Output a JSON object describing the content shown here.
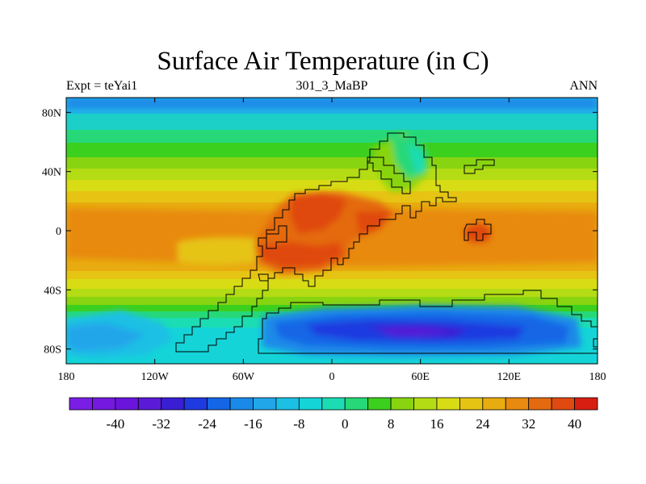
{
  "title": "Surface Air Temperature (in C)",
  "subtitle_left": "Expt = teYai1",
  "subtitle_center": "301_3_MaBP",
  "subtitle_right": "ANN",
  "map": {
    "type": "contour-map",
    "lon_range": [
      -180,
      180
    ],
    "lat_range": [
      -90,
      90
    ],
    "x_ticks": [
      {
        "value": -180,
        "label": "180"
      },
      {
        "value": -120,
        "label": "120W"
      },
      {
        "value": -60,
        "label": "60W"
      },
      {
        "value": 0,
        "label": "0"
      },
      {
        "value": 60,
        "label": "60E"
      },
      {
        "value": 120,
        "label": "120E"
      },
      {
        "value": 180,
        "label": "180"
      }
    ],
    "y_ticks": [
      {
        "value": 80,
        "label": "80N"
      },
      {
        "value": 40,
        "label": "40N"
      },
      {
        "value": 0,
        "label": "0"
      },
      {
        "value": -40,
        "label": "40S"
      },
      {
        "value": -80,
        "label": "80S"
      }
    ]
  },
  "colorbar": {
    "colors": [
      "#7a1ee6",
      "#7518e0",
      "#6a14dc",
      "#5a1ad8",
      "#3a1ed4",
      "#1e3ae0",
      "#1466e6",
      "#1a8ae8",
      "#22a6ea",
      "#1cc0e4",
      "#14d4d8",
      "#1cdcb4",
      "#26d878",
      "#3cd01e",
      "#88d410",
      "#b4dc14",
      "#d8dc14",
      "#e6c414",
      "#e8ac10",
      "#e88a10",
      "#e46a10",
      "#e04a10",
      "#d81e10"
    ],
    "labels": [
      {
        "index": 2,
        "text": "-40"
      },
      {
        "index": 4,
        "text": "-32"
      },
      {
        "index": 6,
        "text": "-24"
      },
      {
        "index": 8,
        "text": "-16"
      },
      {
        "index": 10,
        "text": "-8"
      },
      {
        "index": 12,
        "text": "0"
      },
      {
        "index": 14,
        "text": "8"
      },
      {
        "index": 16,
        "text": "16"
      },
      {
        "index": 18,
        "text": "24"
      },
      {
        "index": 20,
        "text": "32"
      },
      {
        "index": 22,
        "text": "40"
      }
    ]
  }
}
